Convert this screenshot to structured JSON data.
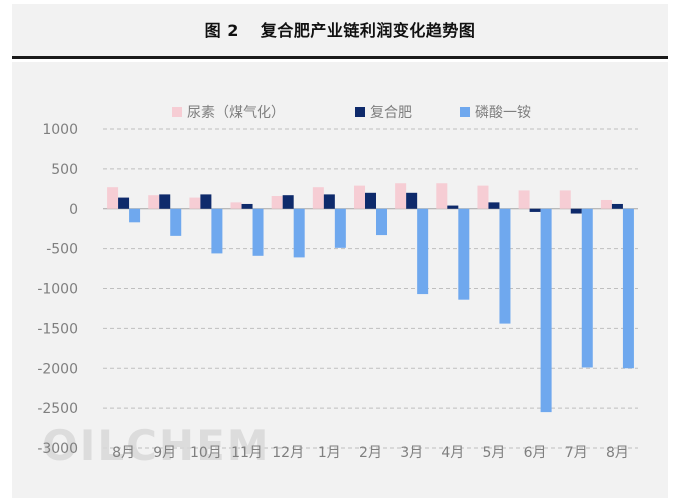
{
  "figure": {
    "number": "图 2",
    "title": "复合肥产业链利润变化趋势图"
  },
  "watermark": "OILCHEM",
  "colors": {
    "urea": "#f6cdd4",
    "compound": "#0e2a6b",
    "map": "#6fa8ee",
    "grid": "#bfbfbf",
    "axis_text": "#7f7f7f",
    "legend_text": "#7f7f7f"
  },
  "chart_data": {
    "type": "bar",
    "title": "复合肥产业链利润变化趋势图",
    "xlabel": "",
    "ylabel": "",
    "ylim": [
      -3000,
      1000
    ],
    "yticks": [
      1000,
      500,
      0,
      -500,
      -1000,
      -1500,
      -2000,
      -2500,
      -3000
    ],
    "grid": true,
    "legend_position": "top",
    "categories": [
      "8月",
      "9月",
      "10月",
      "11月",
      "12月",
      "1月",
      "2月",
      "3月",
      "4月",
      "5月",
      "6月",
      "7月",
      "8月"
    ],
    "series": [
      {
        "name": "尿素（煤气化）",
        "color_key": "urea",
        "values": [
          270,
          170,
          140,
          80,
          160,
          270,
          290,
          320,
          320,
          290,
          230,
          230,
          110
        ]
      },
      {
        "name": "复合肥",
        "color_key": "compound",
        "values": [
          140,
          180,
          180,
          60,
          170,
          180,
          200,
          200,
          40,
          80,
          -40,
          -60,
          60
        ]
      },
      {
        "name": "磷酸一铵",
        "color_key": "map",
        "values": [
          -170,
          -340,
          -560,
          -590,
          -610,
          -490,
          -330,
          -1070,
          -1140,
          -1440,
          -2550,
          -1990,
          -2000
        ]
      }
    ]
  }
}
